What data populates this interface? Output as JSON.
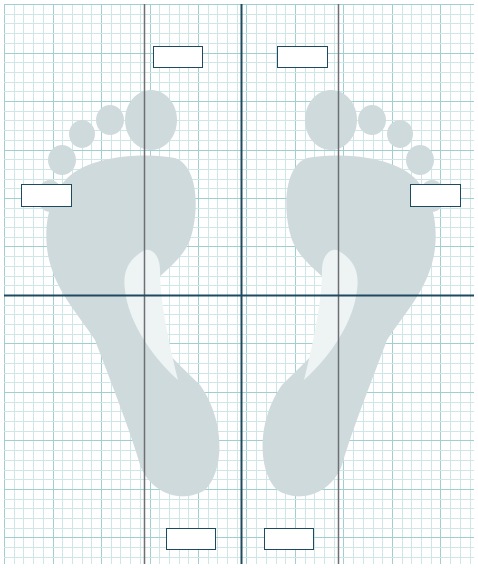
{
  "colors": {
    "grid_minor": "#cfe6e6",
    "grid_major": "#9fcfd0",
    "axis": "#1d4a5f",
    "guide": "#6d6f73",
    "foot_fill": "#cfdadd",
    "arch_fill": "#eef3f4",
    "field_border": "#1d4a5f"
  },
  "icons": [
    "left-foot-icon",
    "right-foot-icon"
  ],
  "fields": [
    {
      "name": "left-toe-field",
      "value": ""
    },
    {
      "name": "right-toe-field",
      "value": ""
    },
    {
      "name": "left-outer-field",
      "value": ""
    },
    {
      "name": "right-outer-field",
      "value": ""
    },
    {
      "name": "left-heel-field",
      "value": ""
    },
    {
      "name": "right-heel-field",
      "value": ""
    }
  ]
}
